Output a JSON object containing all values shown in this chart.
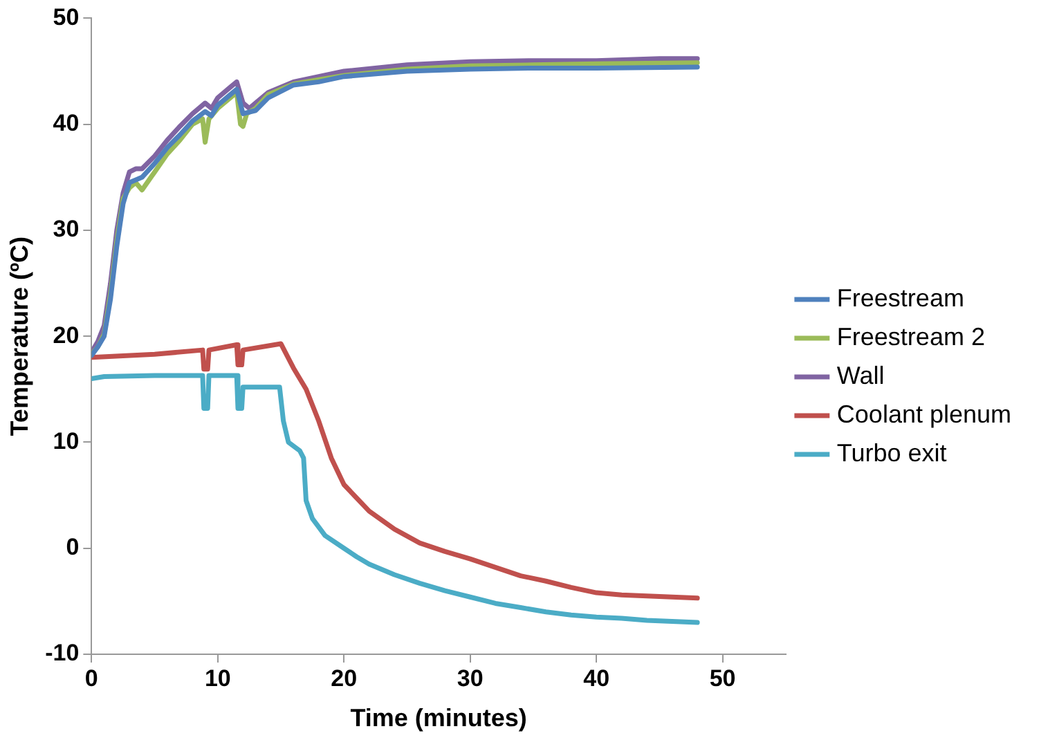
{
  "chart_data": {
    "type": "line",
    "xlabel": "Time (minutes)",
    "ylabel": "Temperature (ºC)",
    "xlim": [
      0,
      55
    ],
    "xticks": [
      0,
      10,
      20,
      30,
      40,
      50
    ],
    "ylim": [
      -10,
      50
    ],
    "yticks": [
      -10,
      0,
      10,
      20,
      30,
      40,
      50
    ],
    "grid": false,
    "legend": "right",
    "marker": "none",
    "line_style": "solid",
    "series": [
      {
        "name": "Freestream",
        "color": "#4f81bd",
        "x": [
          0,
          0.5,
          1,
          1.5,
          2,
          2.5,
          3,
          4,
          5,
          6,
          7,
          8,
          9,
          9.5,
          10,
          11,
          11.5,
          12,
          13,
          14,
          16,
          18,
          20,
          25,
          30,
          35,
          40,
          48
        ],
        "values": [
          18.2,
          19,
          20,
          23.5,
          28.5,
          32.5,
          34.5,
          35,
          36.3,
          37.8,
          39,
          40.3,
          41.2,
          40.8,
          41.8,
          42.8,
          43.3,
          41,
          41.3,
          42.5,
          43.7,
          44,
          44.5,
          45,
          45.2,
          45.3,
          45.3,
          45.4
        ]
      },
      {
        "name": "Freestream 2",
        "color": "#9bbb59",
        "x": [
          0,
          0.5,
          1,
          1.5,
          2,
          2.5,
          3,
          3.5,
          4,
          5,
          6,
          7,
          8,
          8.8,
          9,
          9.3,
          10,
          11,
          11.5,
          11.8,
          12,
          12.3,
          13,
          14,
          16,
          18,
          20,
          25,
          30,
          35,
          40,
          48
        ],
        "values": [
          18.3,
          19,
          20.2,
          24,
          29,
          33,
          34,
          34.5,
          33.8,
          35.5,
          37.2,
          38.5,
          40,
          40.5,
          38.3,
          40.5,
          41.5,
          42.5,
          43,
          40,
          39.8,
          41,
          41.5,
          42.8,
          43.8,
          44.2,
          44.6,
          45.2,
          45.5,
          45.6,
          45.7,
          45.8
        ]
      },
      {
        "name": "Wall",
        "color": "#8064a2",
        "x": [
          0,
          0.5,
          1,
          1.5,
          2,
          2.5,
          3,
          3.5,
          4,
          5,
          6,
          7,
          8,
          9,
          9.5,
          10,
          11,
          11.5,
          12,
          12.5,
          13,
          14,
          16,
          18,
          20,
          25,
          30,
          35,
          40,
          45,
          48
        ],
        "values": [
          18.5,
          19.5,
          21,
          25,
          30,
          33.5,
          35.5,
          35.8,
          35.8,
          37,
          38.5,
          39.8,
          41,
          42,
          41.5,
          42.5,
          43.5,
          44,
          42,
          41.5,
          42,
          43,
          44,
          44.5,
          45,
          45.6,
          45.9,
          46,
          46,
          46.2,
          46.2
        ]
      },
      {
        "name": "Coolant plenum",
        "color": "#c0504d",
        "x": [
          0,
          5,
          8.8,
          8.9,
          9.2,
          9.3,
          11.5,
          11.6,
          11.9,
          12,
          15,
          16,
          17,
          18,
          19,
          20,
          22,
          24,
          26,
          28,
          30,
          32,
          34,
          36,
          38,
          40,
          42,
          44,
          46,
          48
        ],
        "values": [
          18,
          18.3,
          18.7,
          16.9,
          16.9,
          18.7,
          19.2,
          17.3,
          17.3,
          18.7,
          19.3,
          17,
          15,
          12,
          8.5,
          6,
          3.5,
          1.8,
          0.5,
          -0.3,
          -1,
          -1.8,
          -2.6,
          -3.1,
          -3.7,
          -4.2,
          -4.4,
          -4.5,
          -4.6,
          -4.7
        ]
      },
      {
        "name": "Turbo exit",
        "color": "#4bacc6",
        "x": [
          0,
          1,
          5,
          8.8,
          8.9,
          9.2,
          9.3,
          11.5,
          11.6,
          11.9,
          12,
          14.9,
          15.2,
          15.6,
          16.5,
          16.8,
          17,
          17.5,
          18.5,
          20,
          21,
          22,
          24,
          26,
          28,
          30,
          32,
          34,
          36,
          38,
          40,
          42,
          44,
          46,
          48
        ],
        "values": [
          16,
          16.2,
          16.3,
          16.3,
          13.2,
          13.2,
          16.3,
          16.3,
          13.2,
          13.2,
          15.2,
          15.2,
          12,
          10,
          9.2,
          8.5,
          4.5,
          2.8,
          1.2,
          0,
          -0.8,
          -1.5,
          -2.5,
          -3.3,
          -4,
          -4.6,
          -5.2,
          -5.6,
          -6,
          -6.3,
          -6.5,
          -6.6,
          -6.8,
          -6.9,
          -7
        ]
      }
    ]
  }
}
